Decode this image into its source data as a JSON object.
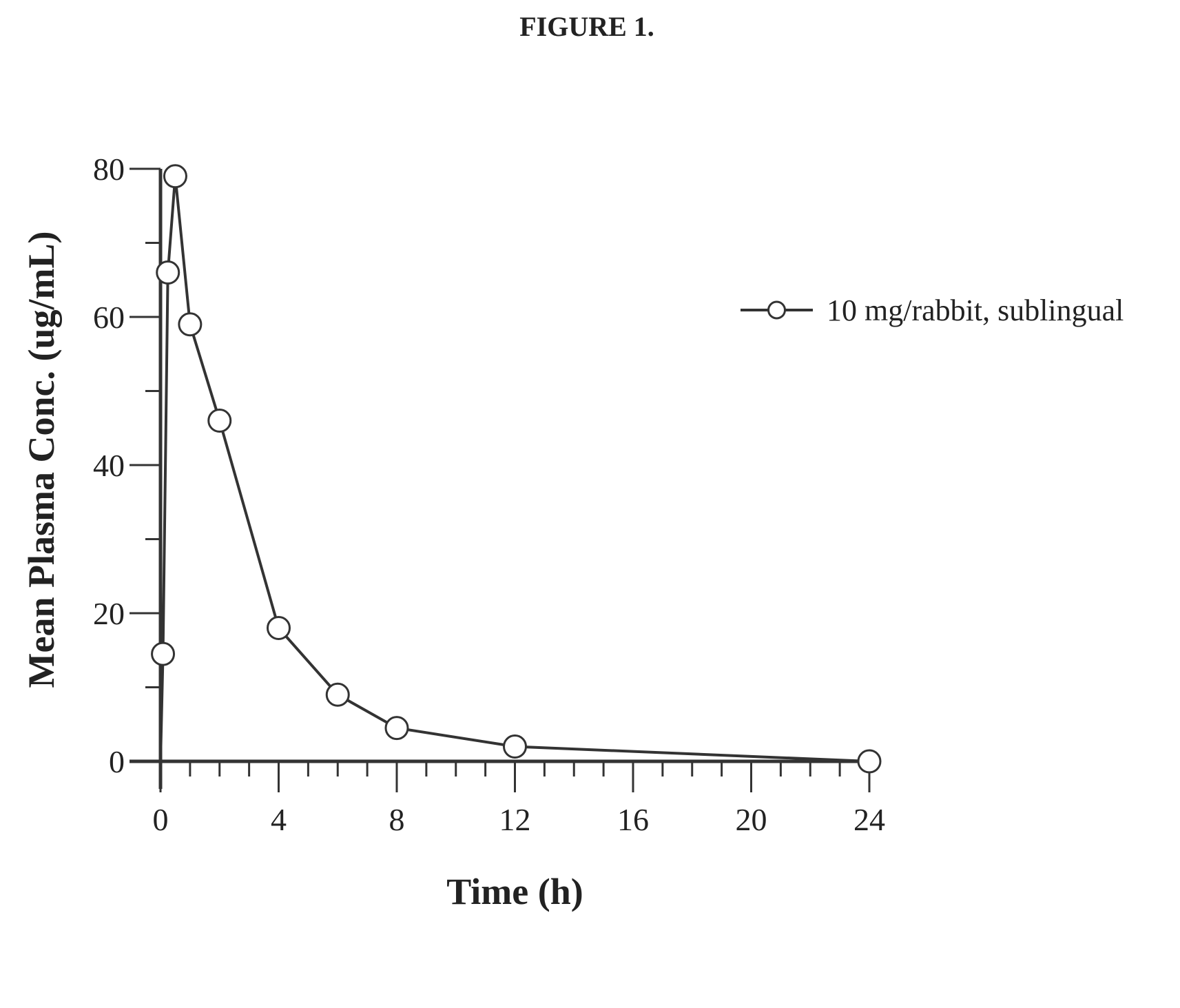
{
  "figure_title": "FIGURE 1.",
  "chart_data": {
    "type": "line",
    "xlabel": "Time (h)",
    "ylabel": "Mean Plasma Conc. (ug/mL)",
    "xlim": [
      0,
      24
    ],
    "ylim": [
      0,
      80
    ],
    "x_ticks": [
      0,
      4,
      8,
      12,
      16,
      20,
      24
    ],
    "y_ticks": [
      0,
      20,
      40,
      60,
      80
    ],
    "x_minor_step": 1,
    "y_minor_step": 10,
    "grid": false,
    "legend_position": "top-right",
    "series": [
      {
        "name": "10 mg/rabbit, sublingual",
        "x": [
          0.083,
          0.25,
          0.5,
          1,
          2,
          4,
          6,
          8,
          12,
          24
        ],
        "y": [
          14.5,
          66,
          79,
          59,
          46,
          18,
          9,
          4.5,
          2,
          0
        ],
        "color": "#333333",
        "marker": "open-circle"
      }
    ]
  }
}
